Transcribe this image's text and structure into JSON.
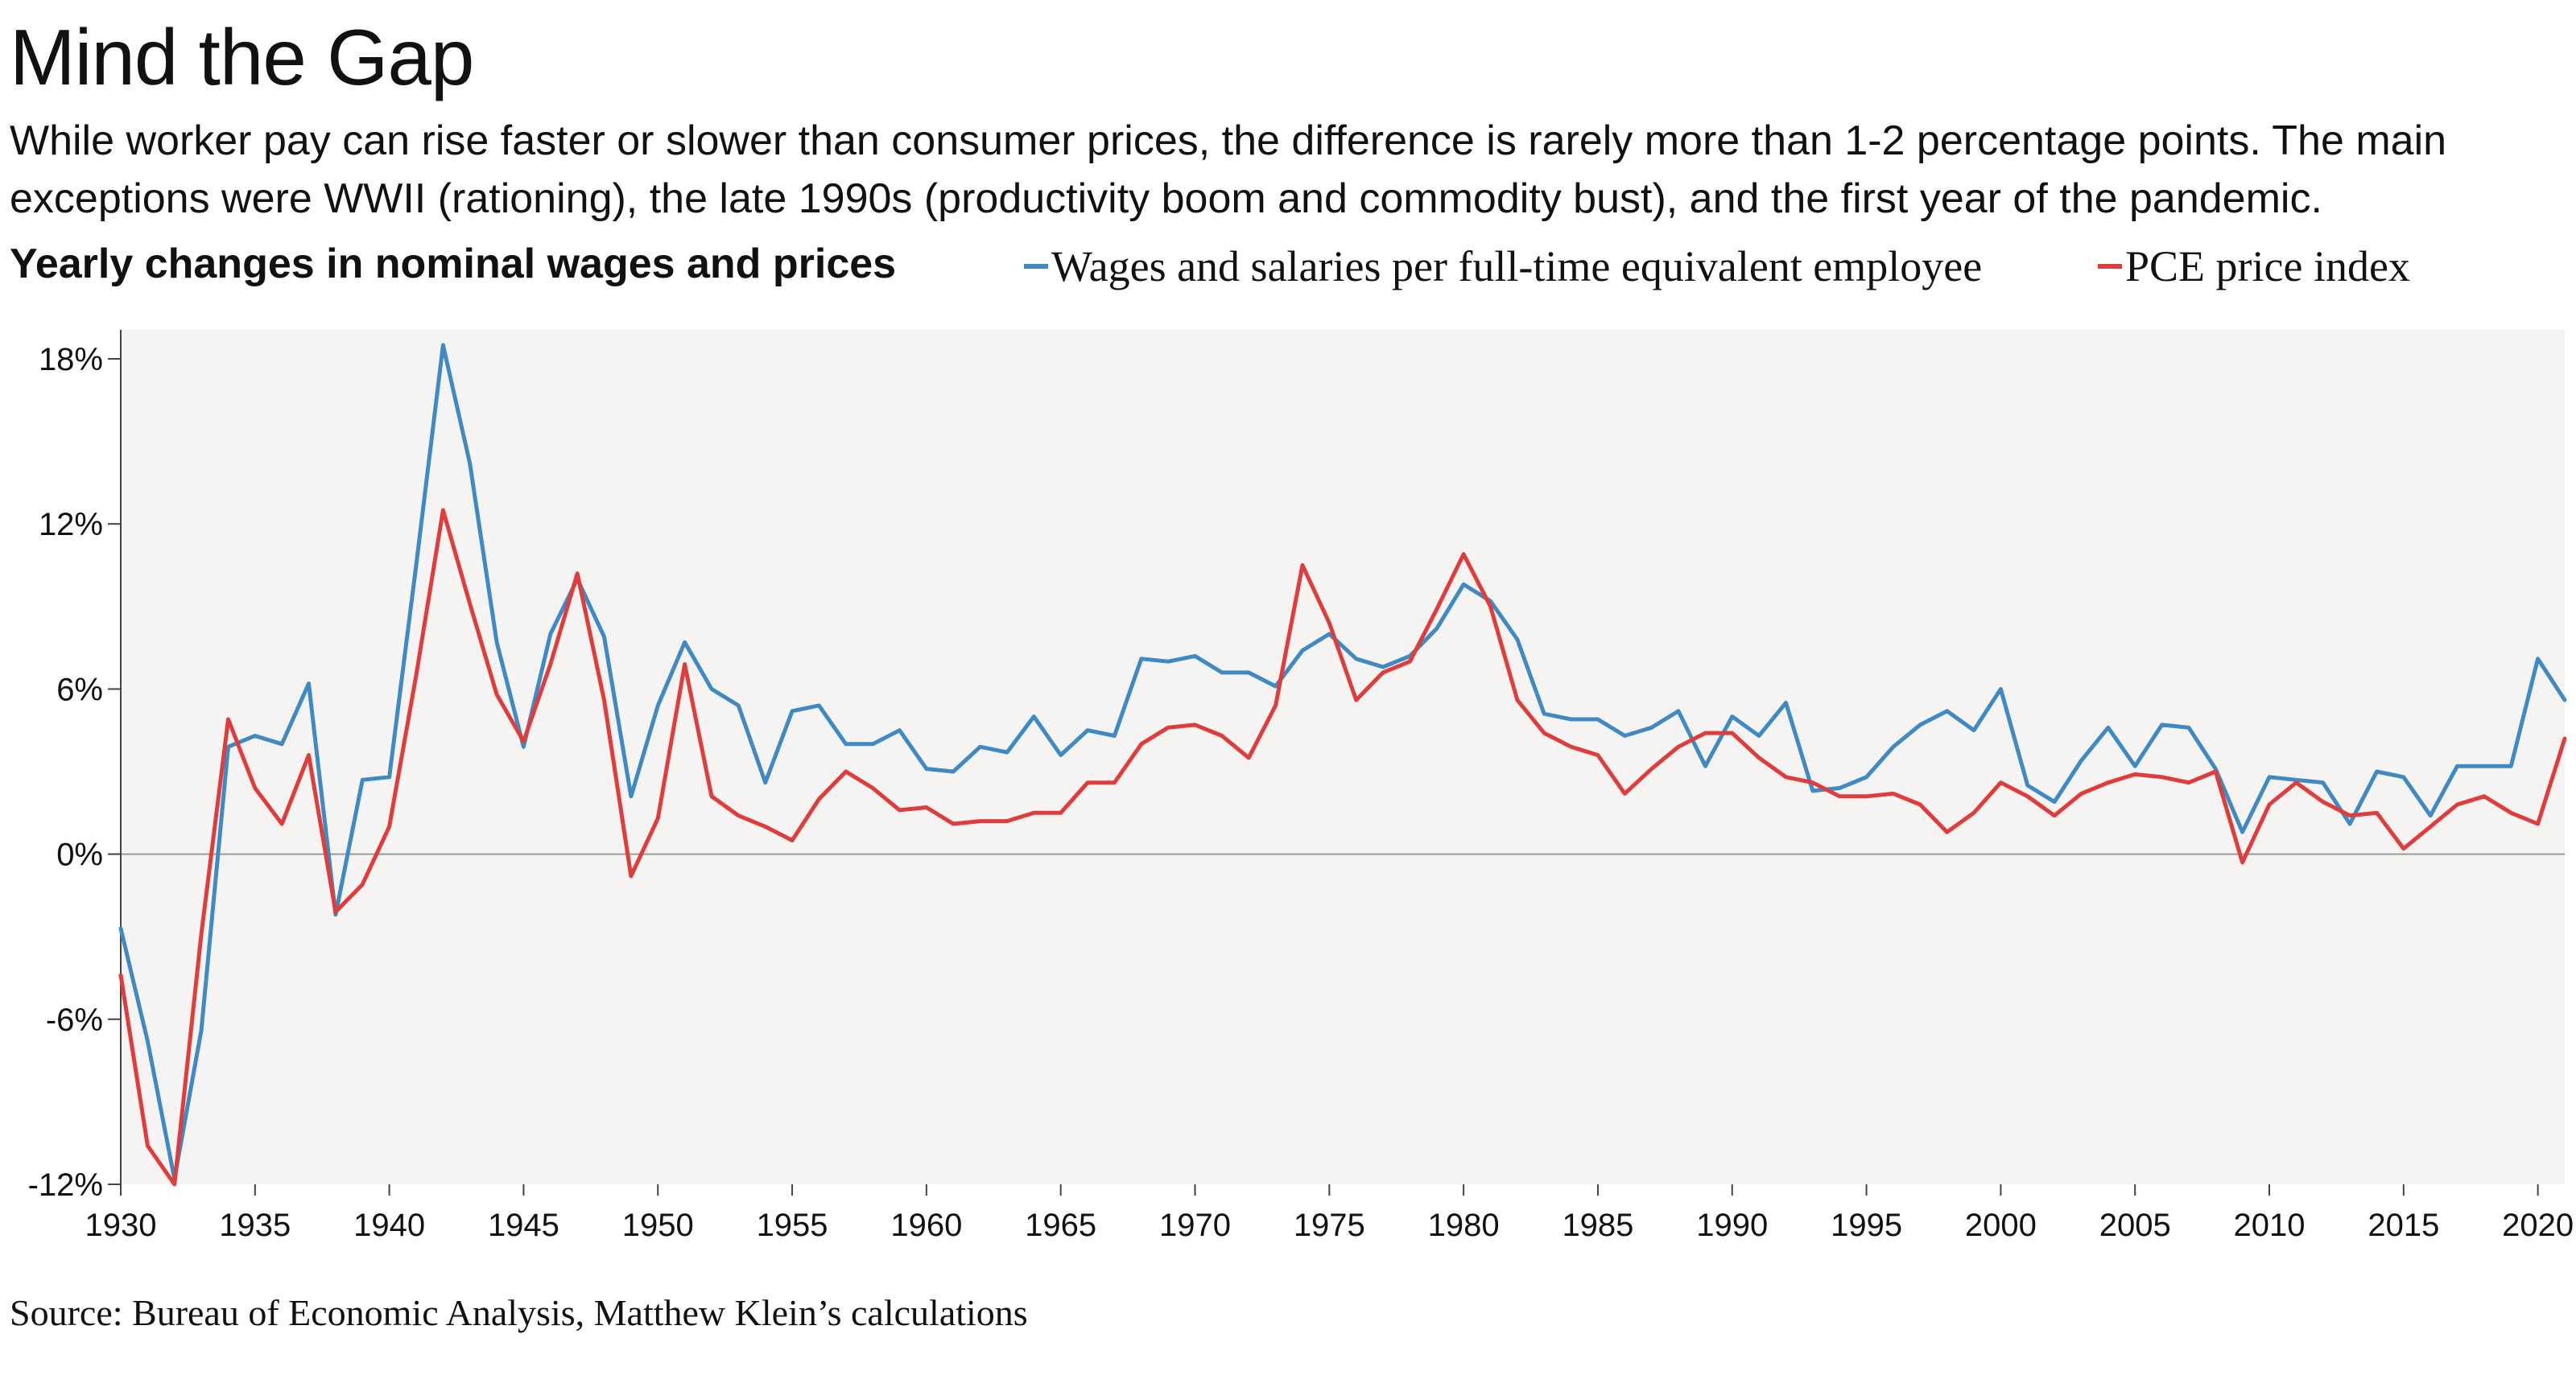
{
  "title": "Mind the Gap",
  "subtitle": "While worker pay can rise faster or slower than consumer prices, the difference is rarely more than 1-2 percentage points. The main exceptions were WWII (rationing), the late 1990s (productivity boom and commodity bust), and the first year of the pandemic.",
  "section_title": "Yearly changes in nominal wages and prices",
  "source": "Source: Bureau of Economic Analysis, Matthew Klein’s calculations",
  "colors": {
    "wages": "#3f8ac4",
    "pce": "#e03c3c",
    "plot_bg": "#f5f4f2",
    "zero_line": "#999999"
  },
  "chart_data": {
    "type": "line",
    "title": "Yearly changes in nominal wages and prices",
    "xlabel": "",
    "ylabel": "",
    "xlim": [
      1930,
      2021
    ],
    "ylim": [
      -12,
      18
    ],
    "x_ticks": [
      1930,
      1935,
      1940,
      1945,
      1950,
      1955,
      1960,
      1965,
      1970,
      1975,
      1980,
      1985,
      1990,
      1995,
      2000,
      2005,
      2010,
      2015,
      2020
    ],
    "y_ticks": [
      -12,
      -6,
      0,
      6,
      12,
      18
    ],
    "y_tick_labels": [
      "-12%",
      "-6%",
      "0%",
      "6%",
      "12%",
      "18%"
    ],
    "grid": false,
    "legend_position": "top",
    "x": [
      1930,
      1931,
      1932,
      1933,
      1934,
      1935,
      1936,
      1937,
      1938,
      1939,
      1940,
      1941,
      1942,
      1943,
      1944,
      1945,
      1946,
      1947,
      1948,
      1949,
      1950,
      1951,
      1952,
      1953,
      1954,
      1955,
      1956,
      1957,
      1958,
      1959,
      1960,
      1961,
      1962,
      1963,
      1964,
      1965,
      1966,
      1967,
      1968,
      1969,
      1970,
      1971,
      1972,
      1973,
      1974,
      1975,
      1976,
      1977,
      1978,
      1979,
      1980,
      1981,
      1982,
      1983,
      1984,
      1985,
      1986,
      1987,
      1988,
      1989,
      1990,
      1991,
      1992,
      1993,
      1994,
      1995,
      1996,
      1997,
      1998,
      1999,
      2000,
      2001,
      2002,
      2003,
      2004,
      2005,
      2006,
      2007,
      2008,
      2009,
      2010,
      2011,
      2012,
      2013,
      2014,
      2015,
      2016,
      2017,
      2018,
      2019,
      2020,
      2021
    ],
    "series": [
      {
        "name": "Wages and salaries per full-time equivalent employee",
        "values": [
          -2.7,
          -6.8,
          -11.8,
          -6.4,
          3.9,
          4.3,
          4.0,
          6.2,
          -2.2,
          2.7,
          2.8,
          10.5,
          18.5,
          14.2,
          7.7,
          3.9,
          8.0,
          10.0,
          7.9,
          2.1,
          5.4,
          7.7,
          6.0,
          5.4,
          2.6,
          5.2,
          5.4,
          4.0,
          4.0,
          4.5,
          3.1,
          3.0,
          3.9,
          3.7,
          5.0,
          3.6,
          4.5,
          4.3,
          7.1,
          7.0,
          7.2,
          6.6,
          6.6,
          6.1,
          7.4,
          8.0,
          7.1,
          6.8,
          7.2,
          8.2,
          9.8,
          9.2,
          7.8,
          5.1,
          4.9,
          4.9,
          4.3,
          4.6,
          5.2,
          3.2,
          5.0,
          4.3,
          5.5,
          2.3,
          2.4,
          2.8,
          3.9,
          4.7,
          5.2,
          4.5,
          6.0,
          2.5,
          1.9,
          3.4,
          4.6,
          3.2,
          4.7,
          4.6,
          3.1,
          0.8,
          2.8,
          2.7,
          2.6,
          1.1,
          3.0,
          2.8,
          1.4,
          3.2,
          3.2,
          3.2,
          7.1,
          5.6
        ]
      },
      {
        "name": "PCE price index",
        "values": [
          -4.4,
          -10.6,
          -12.0,
          -2.9,
          4.9,
          2.4,
          1.1,
          3.6,
          -2.1,
          -1.1,
          1.0,
          6.5,
          12.5,
          9.1,
          5.8,
          4.1,
          6.9,
          10.2,
          5.6,
          -0.8,
          1.3,
          6.9,
          2.1,
          1.4,
          1.0,
          0.5,
          2.0,
          3.0,
          2.4,
          1.6,
          1.7,
          1.1,
          1.2,
          1.2,
          1.5,
          1.5,
          2.6,
          2.6,
          4.0,
          4.6,
          4.7,
          4.3,
          3.5,
          5.4,
          10.5,
          8.4,
          5.6,
          6.6,
          7.0,
          8.9,
          10.9,
          9.0,
          5.6,
          4.4,
          3.9,
          3.6,
          2.2,
          3.1,
          3.9,
          4.4,
          4.4,
          3.5,
          2.8,
          2.6,
          2.1,
          2.1,
          2.2,
          1.8,
          0.8,
          1.5,
          2.6,
          2.1,
          1.4,
          2.2,
          2.6,
          2.9,
          2.8,
          2.6,
          3.0,
          -0.3,
          1.8,
          2.6,
          1.9,
          1.4,
          1.5,
          0.2,
          1.0,
          1.8,
          2.1,
          1.5,
          1.1,
          4.2
        ]
      }
    ]
  }
}
